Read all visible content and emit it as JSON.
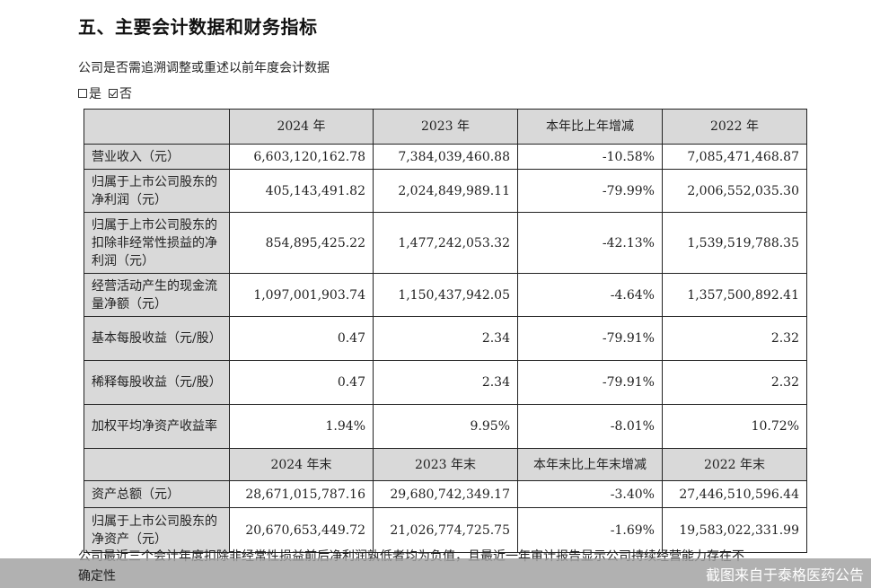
{
  "section": {
    "title": "五、主要会计数据和财务指标"
  },
  "question": {
    "text": "公司是否需追溯调整或重述以前年度会计数据",
    "options": [
      {
        "label": "是",
        "checked": false
      },
      {
        "label": "否",
        "checked": true
      }
    ]
  },
  "table": {
    "header_period": [
      "",
      "2024 年",
      "2023 年",
      "本年比上年增减",
      "2022 年"
    ],
    "rows_period": [
      {
        "label": "营业收入（元）",
        "v2024": "6,603,120,162.78",
        "v2023": "7,384,039,460.88",
        "change": "-10.58%",
        "v2022": "7,085,471,468.87"
      },
      {
        "label": "归属于上市公司股东的净利润（元）",
        "v2024": "405,143,491.82",
        "v2023": "2,024,849,989.11",
        "change": "-79.99%",
        "v2022": "2,006,552,035.30"
      },
      {
        "label": "归属于上市公司股东的扣除非经常性损益的净利润（元）",
        "v2024": "854,895,425.22",
        "v2023": "1,477,242,053.32",
        "change": "-42.13%",
        "v2022": "1,539,519,788.35"
      },
      {
        "label": "经营活动产生的现金流量净额（元）",
        "v2024": "1,097,001,903.74",
        "v2023": "1,150,437,942.05",
        "change": "-4.64%",
        "v2022": "1,357,500,892.41"
      },
      {
        "label": "基本每股收益（元/股）",
        "v2024": "0.47",
        "v2023": "2.34",
        "change": "-79.91%",
        "v2022": "2.32"
      },
      {
        "label": "稀释每股收益（元/股）",
        "v2024": "0.47",
        "v2023": "2.34",
        "change": "-79.91%",
        "v2022": "2.32"
      },
      {
        "label": "加权平均净资产收益率",
        "v2024": "1.94%",
        "v2023": "9.95%",
        "change": "-8.01%",
        "v2022": "10.72%"
      }
    ],
    "header_end": [
      "",
      "2024 年末",
      "2023 年末",
      "本年末比上年末增减",
      "2022 年末"
    ],
    "rows_end": [
      {
        "label": "资产总额（元）",
        "v2024": "28,671,015,787.16",
        "v2023": "29,680,742,349.17",
        "change": "-3.40%",
        "v2022": "27,446,510,596.44"
      },
      {
        "label": "归属于上市公司股东的净资产（元）",
        "v2024": "20,670,653,449.72",
        "v2023": "21,026,774,725.75",
        "change": "-1.69%",
        "v2022": "19,583,022,331.99"
      }
    ]
  },
  "note": {
    "line1": "公司最近三个会计年度扣除非经常性损益前后净利润孰低者均为负值，且最近一年审计报告显示公司持续经营能力存在不",
    "line2": "确定性"
  },
  "watermark": {
    "text": "截图来自于泰格医药公告",
    "bar_color": "#a0a0a0"
  }
}
